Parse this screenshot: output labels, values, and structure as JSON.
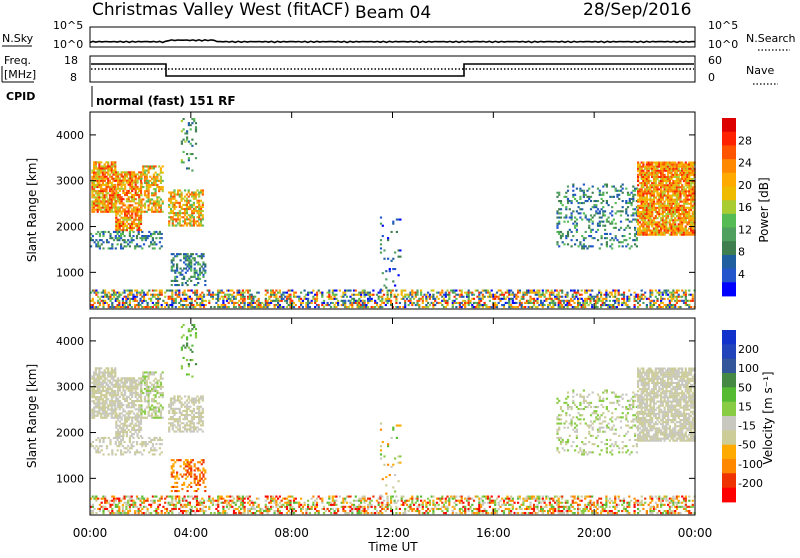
{
  "header": {
    "station": "Christmas Valley West (fitACF)",
    "beam": "Beam 04",
    "date": "28/Sep/2016"
  },
  "top_panels": {
    "nsky_label": "N.Sky",
    "nsky_ticks": [
      "10^5",
      "10^0"
    ],
    "nsearch_label": "N.Search",
    "nsearch_ticks": [
      "10^5",
      "10^0"
    ],
    "freq_label_1": "Freq.",
    "freq_label_2": "[MHz]",
    "freq_ticks": [
      "18",
      "8"
    ],
    "nave_label": "Nave",
    "nave_ticks": [
      "60",
      "0"
    ],
    "cpid_label": "CPID",
    "cpid_text": "normal (fast) 151 RF"
  },
  "colors": {
    "power_scale": [
      "#0000ff",
      "#2255cc",
      "#1f5f9f",
      "#3f7f4f",
      "#4f9f5f",
      "#55bb55",
      "#aacc33",
      "#eebb00",
      "#ffaa00",
      "#ff8800",
      "#ff5500",
      "#ff2200",
      "#dd0000"
    ],
    "velocity_scale": [
      "#ff0000",
      "#ee3300",
      "#ff8800",
      "#ffaa00",
      "#cccc99",
      "#c8c8c0",
      "#88cc44",
      "#55bb33",
      "#448844",
      "#335599",
      "#2244bb",
      "#1133cc"
    ]
  },
  "chart_data": [
    {
      "type": "heatmap",
      "title": "Power",
      "ylabel": "Slant Range [km]",
      "xlabel": "Time UT",
      "x_ticks": [
        "00:00",
        "04:00",
        "08:00",
        "12:00",
        "16:00",
        "20:00",
        "00:00"
      ],
      "y_ticks": [
        "1000",
        "2000",
        "3000",
        "4000"
      ],
      "ylim": [
        200,
        4500
      ],
      "xlim_hours": [
        0,
        24
      ],
      "colorbar_label": "Power [dB]",
      "colorbar_ticks": [
        "4",
        "8",
        "12",
        "16",
        "20",
        "24",
        "28"
      ],
      "grid": false
    },
    {
      "type": "heatmap",
      "title": "Velocity",
      "ylabel": "Slant Range [km]",
      "xlabel": "Time UT",
      "x_ticks": [
        "00:00",
        "04:00",
        "08:00",
        "12:00",
        "16:00",
        "20:00",
        "00:00"
      ],
      "y_ticks": [
        "1000",
        "2000",
        "3000",
        "4000"
      ],
      "ylim": [
        200,
        4500
      ],
      "xlim_hours": [
        0,
        24
      ],
      "colorbar_label": "Velocity [m s⁻¹]",
      "colorbar_ticks": [
        "200",
        "100",
        "50",
        "15",
        "-15",
        "-50",
        "-100",
        "-200"
      ],
      "grid": false
    }
  ]
}
